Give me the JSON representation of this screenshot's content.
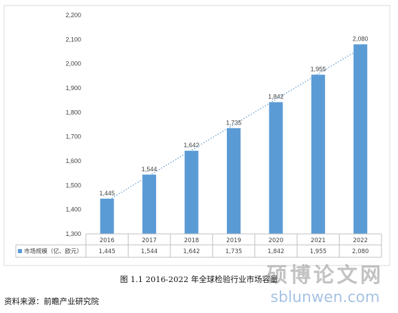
{
  "chart_data": {
    "type": "bar",
    "categories": [
      "2016",
      "2017",
      "2018",
      "2019",
      "2020",
      "2021",
      "2022"
    ],
    "series": [
      {
        "name": "市场规模（亿、欧元）",
        "values": [
          1445,
          1544,
          1642,
          1735,
          1842,
          1955,
          2080
        ]
      }
    ],
    "data_labels": [
      "1,445",
      "1,544",
      "1,642",
      "1,735",
      "1,842",
      "1,955",
      "2,080"
    ],
    "y_ticks": [
      "1,300",
      "1,400",
      "1,500",
      "1,600",
      "1,700",
      "1,800",
      "1,900",
      "2,000",
      "2,100",
      "2,200"
    ],
    "ylim": [
      1300,
      2200
    ],
    "trendline": "linear, dotted",
    "data_table": true,
    "grid": false,
    "bar_color": "#5b9bd5",
    "trend_color": "#5b9bd5"
  },
  "caption": "图 1.1  2016-2022 年全球检验行业市场容量",
  "source": "资料来源：前瞻产业研究院",
  "watermark": {
    "cn": "硕博论文网",
    "en": "sblunwen.com"
  }
}
